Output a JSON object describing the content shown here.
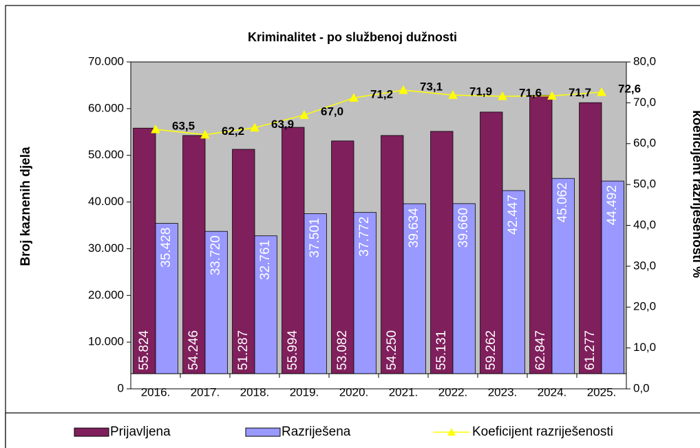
{
  "chart_data": {
    "type": "bar",
    "title": "Kriminalitet - po službenoj dužnosti",
    "y_label": "Broj kaznenih djela",
    "y2_label": "koeficijent razriješenosti %",
    "categories": [
      "2016.",
      "2017.",
      "2018.",
      "2019.",
      "2020.",
      "2021.",
      "2022.",
      "2023.",
      "2024.",
      "2025."
    ],
    "series": [
      {
        "name": "Prijavljena",
        "color": "#7f1f5c",
        "values": [
          55824,
          54246,
          51287,
          55994,
          53082,
          54250,
          55131,
          59262,
          62847,
          61277
        ],
        "value_labels": [
          "55.824",
          "54.246",
          "51.287",
          "55.994",
          "53.082",
          "54.250",
          "55.131",
          "59.262",
          "62.847",
          "61.277"
        ]
      },
      {
        "name": "Razriješena",
        "color": "#9999ff",
        "values": [
          35428,
          33720,
          32761,
          37501,
          37772,
          39634,
          39660,
          42447,
          45062,
          44492
        ],
        "value_labels": [
          "35.428",
          "33.720",
          "32.761",
          "37.501",
          "37.772",
          "39.634",
          "39.660",
          "42.447",
          "45.062",
          "44.492"
        ]
      },
      {
        "name": "Koeficijent razriješenosti",
        "color": "#ffff00",
        "type": "line",
        "axis": "y2",
        "values": [
          63.5,
          62.2,
          63.9,
          67.0,
          71.2,
          73.1,
          71.9,
          71.6,
          71.7,
          72.6
        ],
        "value_labels": [
          "63,5",
          "62,2",
          "63,9",
          "67,0",
          "71,2",
          "73,1",
          "71,9",
          "71,6",
          "71,7",
          "72,6"
        ]
      }
    ],
    "ylim": [
      0,
      70000
    ],
    "yticks": [
      0,
      {
        "value": 10000,
        "label": "10.000"
      },
      {
        "value": 20000,
        "label": "20.000"
      },
      {
        "value": 30000,
        "label": "30.000"
      },
      {
        "value": 40000,
        "label": "40.000"
      },
      {
        "value": 50000,
        "label": "50.000"
      },
      {
        "value": 60000,
        "label": "60.000"
      },
      {
        "value": 70000,
        "label": "70.000"
      }
    ],
    "y2lim": [
      0,
      80
    ],
    "y2ticks": [
      {
        "value": 0,
        "label": "0,0"
      },
      {
        "value": 10,
        "label": "10,0"
      },
      {
        "value": 20,
        "label": "20,0"
      },
      {
        "value": 30,
        "label": "30,0"
      },
      {
        "value": 40,
        "label": "40,0"
      },
      {
        "value": 50,
        "label": "50,0"
      },
      {
        "value": 60,
        "label": "60,0"
      },
      {
        "value": 70,
        "label": "70,0"
      },
      {
        "value": 80,
        "label": "80,0"
      }
    ],
    "plot_background": "#c0c0c0",
    "grid": false,
    "legend": "bottom"
  }
}
